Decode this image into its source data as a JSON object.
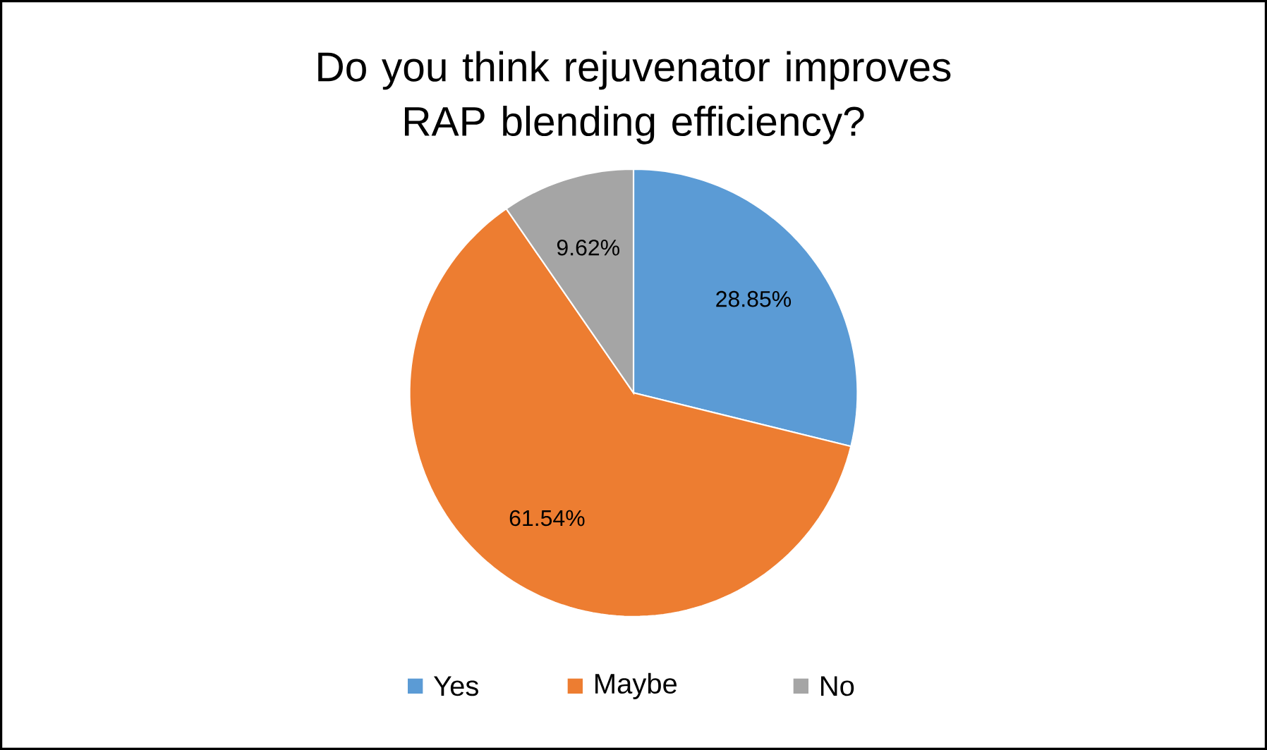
{
  "chart_data": {
    "type": "pie",
    "title": "Do you think rejuvenator improves RAP blending efficiency?",
    "categories": [
      "Yes",
      "Maybe",
      "No"
    ],
    "values": [
      28.85,
      61.54,
      9.62
    ],
    "colors": [
      "#5b9bd5",
      "#ed7d31",
      "#a5a5a5"
    ],
    "value_labels": [
      "28.85%",
      "61.54%",
      "9.62%"
    ],
    "legend": "bottom"
  }
}
